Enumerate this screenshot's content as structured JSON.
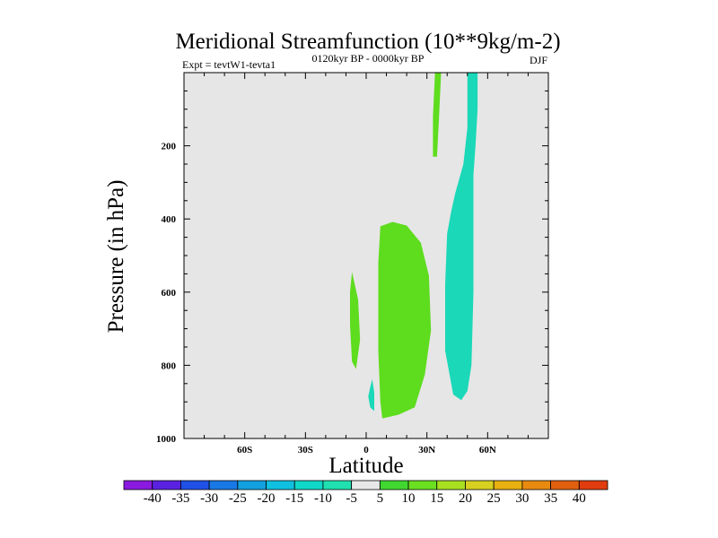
{
  "chart_data": {
    "type": "contour",
    "title": "Meridional Streamfunction (10**9kg/m-2)",
    "subtitle_left": "Expt = tevtW1-tevta1",
    "subtitle_center": "0120kyr BP - 0000kyr BP",
    "subtitle_right": "DJF",
    "xlabel": "Latitude",
    "ylabel": "Pressure (in hPa)",
    "xlim": [
      -90,
      90
    ],
    "ylim": [
      1000,
      0
    ],
    "y_inverted": true,
    "x_ticks": [
      {
        "value": -60,
        "label": "60S"
      },
      {
        "value": -30,
        "label": "30S"
      },
      {
        "value": 0,
        "label": "0"
      },
      {
        "value": 30,
        "label": "30N"
      },
      {
        "value": 60,
        "label": "60N"
      }
    ],
    "y_ticks": [
      {
        "value": 200,
        "label": "200"
      },
      {
        "value": 400,
        "label": "400"
      },
      {
        "value": 600,
        "label": "600"
      },
      {
        "value": 800,
        "label": "800"
      },
      {
        "value": 1000,
        "label": "1000"
      }
    ],
    "background_fill": "#e6e6e6",
    "colorbar": {
      "boundaries": [
        "-40",
        "-35",
        "-30",
        "-25",
        "-20",
        "-15",
        "-10",
        "-5",
        "5",
        "10",
        "15",
        "20",
        "25",
        "30",
        "35",
        "40"
      ],
      "colors": [
        "#8a1ae0",
        "#5a22e0",
        "#2050e6",
        "#1878e6",
        "#12a0e0",
        "#10c0e0",
        "#10d8c8",
        "#20e0b0",
        "#e8e8e8",
        "#40d830",
        "#6ae020",
        "#a8e020",
        "#d8d020",
        "#e8b010",
        "#e88a10",
        "#e06010",
        "#e03c10"
      ]
    },
    "regions": [
      {
        "name": "positive-core",
        "level": "10 to 15",
        "color": "#a8e020",
        "outline": [
          [
            8,
            570
          ],
          [
            10,
            650
          ],
          [
            12,
            750
          ],
          [
            11,
            860
          ],
          [
            9,
            910
          ],
          [
            7,
            880
          ],
          [
            6,
            750
          ],
          [
            6,
            630
          ]
        ]
      },
      {
        "name": "positive-outer",
        "level": "5 to 10",
        "color": "#5edc1e",
        "outline": [
          [
            7,
            420
          ],
          [
            13,
            408
          ],
          [
            20,
            418
          ],
          [
            27,
            465
          ],
          [
            31,
            555
          ],
          [
            32,
            705
          ],
          [
            29,
            825
          ],
          [
            24,
            915
          ],
          [
            16,
            935
          ],
          [
            8,
            945
          ],
          [
            7,
            900
          ],
          [
            6,
            760
          ],
          [
            6,
            600
          ],
          [
            6,
            520
          ]
        ]
      },
      {
        "name": "positive-small-left",
        "level": "5 to 10",
        "color": "#5edc1e",
        "outline": [
          [
            -7,
            545
          ],
          [
            -4,
            620
          ],
          [
            -3,
            730
          ],
          [
            -5,
            810
          ],
          [
            -7,
            790
          ],
          [
            -8,
            690
          ],
          [
            -8,
            600
          ]
        ]
      },
      {
        "name": "positive-upper-streak",
        "level": "5 to 10",
        "color": "#5edc1e",
        "outline": [
          [
            34,
            0
          ],
          [
            37,
            0
          ],
          [
            36,
            120
          ],
          [
            35,
            230
          ],
          [
            33,
            230
          ],
          [
            33,
            120
          ]
        ]
      },
      {
        "name": "negative-band",
        "level": "-10 to -5",
        "color": "#1ad8b8",
        "outline": [
          [
            50,
            0
          ],
          [
            55,
            0
          ],
          [
            55,
            100
          ],
          [
            54,
            200
          ],
          [
            53,
            280
          ],
          [
            53,
            400
          ],
          [
            53,
            600
          ],
          [
            52,
            800
          ],
          [
            50,
            870
          ],
          [
            47,
            895
          ],
          [
            43,
            880
          ],
          [
            39,
            760
          ],
          [
            39,
            580
          ],
          [
            40,
            440
          ],
          [
            42,
            380
          ],
          [
            44,
            330
          ],
          [
            48,
            250
          ],
          [
            50,
            150
          ],
          [
            50,
            60
          ]
        ]
      },
      {
        "name": "negative-small-bottom",
        "level": "-10 to -5",
        "color": "#1ad8b8",
        "outline": [
          [
            3,
            838
          ],
          [
            4,
            875
          ],
          [
            4,
            925
          ],
          [
            2,
            915
          ],
          [
            1,
            885
          ],
          [
            2,
            860
          ]
        ]
      }
    ]
  }
}
